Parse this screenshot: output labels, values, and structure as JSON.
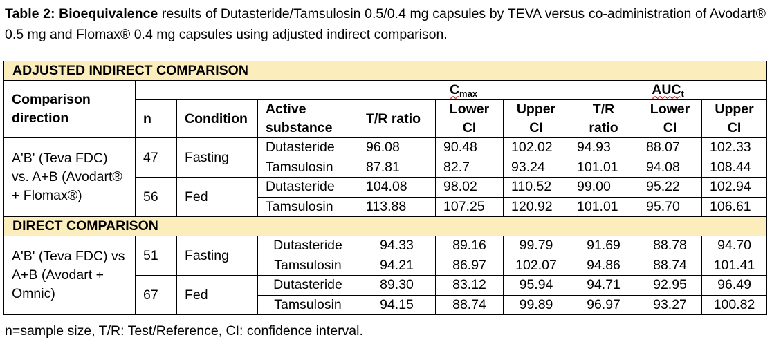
{
  "caption": {
    "label": "Table 2:",
    "bold_title": "Bioequivalence",
    "text": "results of Dutasteride/Tamsulosin 0.5/0.4 mg capsules by TEVA versus co-administration of Avodart® 0.5 mg and Flomax® 0.4 mg capsules using adjusted indirect comparison."
  },
  "table": {
    "section_adjusted": "ADJUSTED INDIRECT COMPARISON",
    "section_direct": "DIRECT COMPARISON",
    "headers": {
      "comparison_direction": "Comparison direction",
      "n": "n",
      "condition": "Condition",
      "active_substance": "Active substance",
      "cmax_main": "C",
      "cmax_sub": "max",
      "auc_main": "AUC",
      "auc_sub": "t",
      "tr_ratio": "T/R ratio",
      "lower_ci": "Lower CI",
      "upper_ci": "Upper CI",
      "auc_tr": "T/R ratio",
      "auc_lower": "Lower CI",
      "auc_upper": "Upper CI"
    },
    "adjusted": {
      "direction": "A'B' (Teva FDC) vs. A+B (Avodart® + Flomax®)",
      "groups": [
        {
          "n": "47",
          "condition": "Fasting",
          "rows": [
            {
              "substance": "Dutasteride",
              "cmax_tr": "96.08",
              "cmax_lower": "90.48",
              "cmax_upper": "102.02",
              "auc_tr": "94.93",
              "auc_lower": "88.07",
              "auc_upper": "102.33"
            },
            {
              "substance": "Tamsulosin",
              "cmax_tr": "87.81",
              "cmax_lower": "82.7",
              "cmax_upper": "93.24",
              "auc_tr": "101.01",
              "auc_lower": "94.08",
              "auc_upper": "108.44"
            }
          ]
        },
        {
          "n": "56",
          "condition": "Fed",
          "rows": [
            {
              "substance": "Dutasteride",
              "cmax_tr": "104.08",
              "cmax_lower": "98.02",
              "cmax_upper": "110.52",
              "auc_tr": "99.00",
              "auc_lower": "95.22",
              "auc_upper": "102.94"
            },
            {
              "substance": "Tamsulosin",
              "cmax_tr": "113.88",
              "cmax_lower": "107.25",
              "cmax_upper": "120.92",
              "auc_tr": "101.01",
              "auc_lower": "95.70",
              "auc_upper": "106.61"
            }
          ]
        }
      ]
    },
    "direct": {
      "direction": "A'B' (Teva FDC) vs A+B (Avodart + Omnic)",
      "groups": [
        {
          "n": "51",
          "condition": "Fasting",
          "rows": [
            {
              "substance": "Dutasteride",
              "cmax_tr": "94.33",
              "cmax_lower": "89.16",
              "cmax_upper": "99.79",
              "auc_tr": "91.69",
              "auc_lower": "88.78",
              "auc_upper": "94.70"
            },
            {
              "substance": "Tamsulosin",
              "cmax_tr": "94.21",
              "cmax_lower": "86.97",
              "cmax_upper": "102.07",
              "auc_tr": "94.86",
              "auc_lower": "88.74",
              "auc_upper": "101.41"
            }
          ]
        },
        {
          "n": "67",
          "condition": "Fed",
          "rows": [
            {
              "substance": "Dutasteride",
              "cmax_tr": "89.30",
              "cmax_lower": "83.12",
              "cmax_upper": "95.94",
              "auc_tr": "94.71",
              "auc_lower": "92.95",
              "auc_upper": "96.49"
            },
            {
              "substance": "Tamsulosin",
              "cmax_tr": "94.15",
              "cmax_lower": "88.74",
              "cmax_upper": "99.89",
              "auc_tr": "96.97",
              "auc_lower": "93.27",
              "auc_upper": "100.82"
            }
          ]
        }
      ]
    }
  },
  "footnote": "n=sample size, T/R: Test/Reference, CI: confidence interval.",
  "colors": {
    "section_header_bg": "#fbeebc",
    "border": "#000000",
    "spellcheck_underline": "#c00000"
  }
}
